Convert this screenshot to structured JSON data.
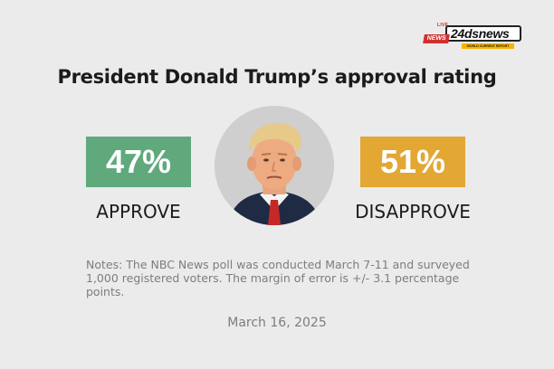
{
  "logo": {
    "live": "LIVE",
    "news": "NEWS",
    "brand": "24dsnews",
    "slogan": "WORLD CURRENT REPORT"
  },
  "chart_data": {
    "type": "table",
    "title": "President Donald Trump’s approval rating",
    "categories": [
      "APPROVE",
      "DISAPPROVE"
    ],
    "values": [
      47,
      51
    ],
    "value_labels": [
      "47%",
      "51%"
    ],
    "colors": [
      "#5fa97d",
      "#e3a734"
    ]
  },
  "notes": "Notes: The NBC News poll was conducted March 7-11 and surveyed 1,000 registered voters. The margin of error is +/- 3.1 percentage points.",
  "date": "March 16, 2025"
}
